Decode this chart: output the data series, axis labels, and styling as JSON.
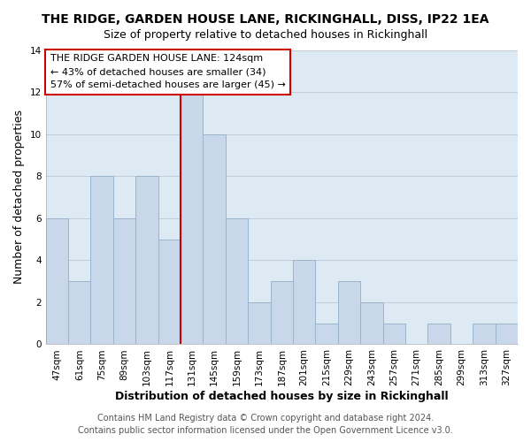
{
  "title": "THE RIDGE, GARDEN HOUSE LANE, RICKINGHALL, DISS, IP22 1EA",
  "subtitle": "Size of property relative to detached houses in Rickinghall",
  "xlabel": "Distribution of detached houses by size in Rickinghall",
  "ylabel": "Number of detached properties",
  "bar_labels": [
    "47sqm",
    "61sqm",
    "75sqm",
    "89sqm",
    "103sqm",
    "117sqm",
    "131sqm",
    "145sqm",
    "159sqm",
    "173sqm",
    "187sqm",
    "201sqm",
    "215sqm",
    "229sqm",
    "243sqm",
    "257sqm",
    "271sqm",
    "285sqm",
    "299sqm",
    "313sqm",
    "327sqm"
  ],
  "bar_values": [
    6,
    3,
    8,
    6,
    8,
    5,
    12,
    10,
    6,
    2,
    3,
    4,
    1,
    3,
    2,
    1,
    0,
    1,
    0,
    1,
    1
  ],
  "bar_color": "#c8d8ea",
  "bar_edge_color": "#9ab4cc",
  "reference_line_color": "#cc0000",
  "annotation_text": "THE RIDGE GARDEN HOUSE LANE: 124sqm\n← 43% of detached houses are smaller (34)\n57% of semi-detached houses are larger (45) →",
  "annotation_box_color": "#ffffff",
  "annotation_box_edge_color": "#cc0000",
  "ylim": [
    0,
    14
  ],
  "yticks": [
    0,
    2,
    4,
    6,
    8,
    10,
    12,
    14
  ],
  "footer_line1": "Contains HM Land Registry data © Crown copyright and database right 2024.",
  "footer_line2": "Contains public sector information licensed under the Open Government Licence v3.0.",
  "background_color": "#ffffff",
  "plot_bg_color": "#ddeaf4",
  "grid_color": "#c0cdd8",
  "title_fontsize": 10,
  "subtitle_fontsize": 9,
  "axis_label_fontsize": 9,
  "tick_fontsize": 7.5,
  "footer_fontsize": 7,
  "annotation_fontsize": 8
}
